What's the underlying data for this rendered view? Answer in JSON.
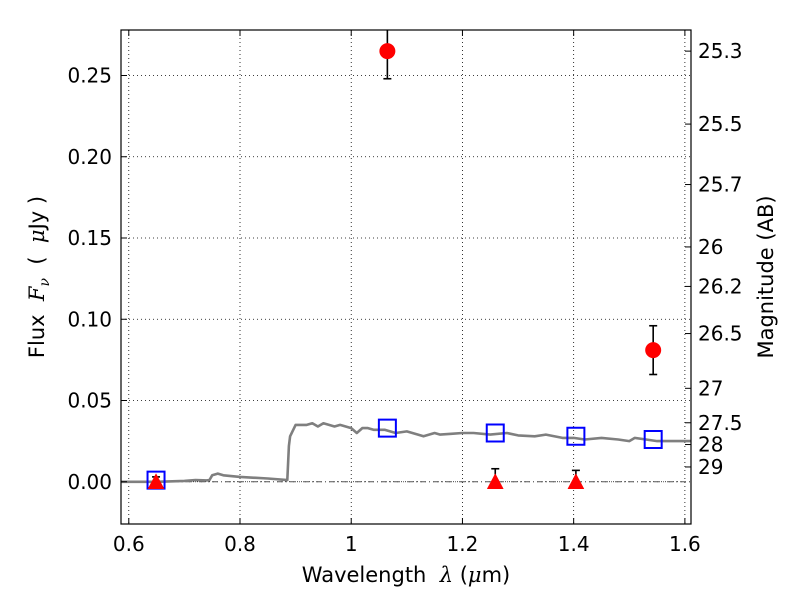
{
  "chart_data": {
    "type": "scatter",
    "xlabel": "Wavelength  λ (μm)",
    "ylabel": "Flux  Fν  ( μJy )",
    "ylabel_right": "Magnitude (AB)",
    "xlim": [
      0.586,
      1.611
    ],
    "ylim": [
      -0.026,
      0.278
    ],
    "x_ticks": [
      {
        "value": 0.6,
        "label": "0.6"
      },
      {
        "value": 0.8,
        "label": "0.8"
      },
      {
        "value": 1.0,
        "label": "1"
      },
      {
        "value": 1.2,
        "label": "1.2"
      },
      {
        "value": 1.4,
        "label": "1.4"
      },
      {
        "value": 1.6,
        "label": "1.6"
      }
    ],
    "y_ticks": [
      {
        "value": 0.0,
        "label": "0.00"
      },
      {
        "value": 0.05,
        "label": "0.05"
      },
      {
        "value": 0.1,
        "label": "0.10"
      },
      {
        "value": 0.15,
        "label": "0.15"
      },
      {
        "value": 0.2,
        "label": "0.20"
      },
      {
        "value": 0.25,
        "label": "0.25"
      }
    ],
    "right_ticks": [
      {
        "flux": 0.265,
        "label": "25.3"
      },
      {
        "flux": 0.2201,
        "label": "25.5"
      },
      {
        "flux": 0.1829,
        "label": "25.7"
      },
      {
        "flux": 0.1445,
        "label": "26"
      },
      {
        "flux": 0.1202,
        "label": "26.2"
      },
      {
        "flux": 0.0912,
        "label": "26.5"
      },
      {
        "flux": 0.0575,
        "label": "27"
      },
      {
        "flux": 0.0363,
        "label": "27.5"
      },
      {
        "flux": 0.0229,
        "label": "28"
      },
      {
        "flux": 0.0091,
        "label": "29"
      }
    ],
    "grid": true,
    "series": [
      {
        "kind": "detections",
        "marker": "circle",
        "color": "#ff0000",
        "x": [
          1.065,
          1.543
        ],
        "y": [
          0.265,
          0.081
        ],
        "err": [
          0.017,
          0.015
        ]
      },
      {
        "kind": "upper-limits",
        "marker": "triangle",
        "color": "#ff0000",
        "x": [
          0.649,
          1.259,
          1.404
        ],
        "y": [
          0.0,
          0.0,
          0.0
        ],
        "err_up": [
          0.003,
          0.008,
          0.007
        ]
      },
      {
        "kind": "model-photometry",
        "marker": "open-square",
        "color": "#0000ff",
        "x": [
          0.649,
          1.065,
          1.259,
          1.404,
          1.543
        ],
        "y": [
          0.001,
          0.033,
          0.03,
          0.028,
          0.026
        ]
      },
      {
        "kind": "model-sed",
        "style": "line",
        "color": "#7f7f7f",
        "x": [
          0.586,
          0.6,
          0.65,
          0.7,
          0.72,
          0.74,
          0.745,
          0.75,
          0.76,
          0.77,
          0.8,
          0.85,
          0.885,
          0.888,
          0.89,
          0.9,
          0.92,
          0.93,
          0.94,
          0.95,
          0.96,
          0.97,
          0.98,
          0.99,
          1.0,
          1.01,
          1.02,
          1.03,
          1.04,
          1.06,
          1.08,
          1.1,
          1.12,
          1.13,
          1.15,
          1.16,
          1.18,
          1.2,
          1.22,
          1.25,
          1.28,
          1.3,
          1.33,
          1.35,
          1.38,
          1.4,
          1.42,
          1.45,
          1.48,
          1.5,
          1.51,
          1.53,
          1.55,
          1.58,
          1.611
        ],
        "y": [
          0.0,
          0.0,
          0.0,
          0.0005,
          0.001,
          0.0008,
          0.001,
          0.004,
          0.005,
          0.004,
          0.003,
          0.002,
          0.001,
          0.022,
          0.028,
          0.035,
          0.035,
          0.036,
          0.034,
          0.036,
          0.035,
          0.034,
          0.035,
          0.034,
          0.033,
          0.03,
          0.033,
          0.033,
          0.032,
          0.032,
          0.03,
          0.031,
          0.029,
          0.028,
          0.03,
          0.029,
          0.0295,
          0.03,
          0.03,
          0.029,
          0.03,
          0.0285,
          0.028,
          0.029,
          0.027,
          0.027,
          0.026,
          0.027,
          0.026,
          0.025,
          0.027,
          0.026,
          0.025,
          0.025,
          0.025
        ]
      }
    ]
  }
}
